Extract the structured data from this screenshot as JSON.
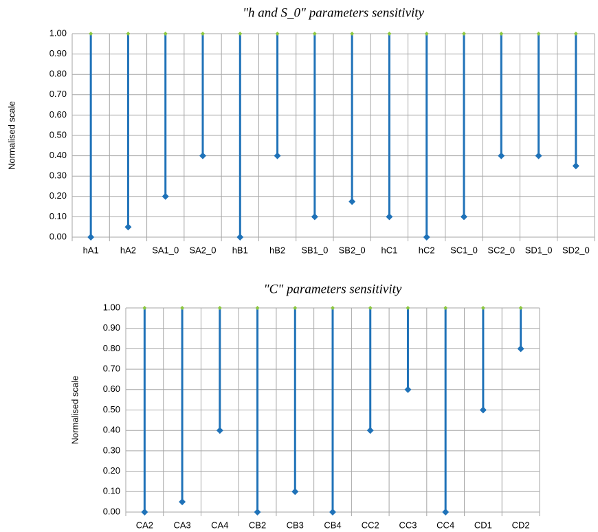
{
  "chart_data": [
    {
      "type": "range",
      "title": "\"h and S_0\" parameters sensitivity",
      "y_label": "Normalised scale",
      "categories": [
        "hA1",
        "hA2",
        "SA1_0",
        "SA2_0",
        "hB1",
        "hB2",
        "SB1_0",
        "SB2_0",
        "hC1",
        "hC2",
        "SC1_0",
        "SC2_0",
        "SD1_0",
        "SD2_0"
      ],
      "low": [
        0,
        0.05,
        0.2,
        0.4,
        0,
        0.4,
        0.1,
        0.175,
        0.1,
        0,
        0.1,
        0.4,
        0.4,
        0.35
      ],
      "high": [
        1,
        1,
        1,
        1,
        1,
        1,
        1,
        1,
        1,
        1,
        1,
        1,
        1,
        1
      ],
      "color": "#1f72b8",
      "ylim": [
        0,
        1
      ],
      "yticks": [
        {
          "value": 0,
          "label": "0.00"
        },
        {
          "value": 0.1,
          "label": "0.10"
        },
        {
          "value": 0.2,
          "label": "0.20"
        },
        {
          "value": 0.3,
          "label": "0.30"
        },
        {
          "value": 0.4,
          "label": "0.40"
        },
        {
          "value": 0.5,
          "label": "0.50"
        },
        {
          "value": 0.6,
          "label": "0.60"
        },
        {
          "value": 0.7,
          "label": "0.70"
        },
        {
          "value": 0.8,
          "label": "0.80"
        },
        {
          "value": 0.9,
          "label": "0.90"
        },
        {
          "value": 1,
          "label": "1.00"
        }
      ],
      "grid": true
    },
    {
      "type": "range",
      "title": "\"C\" parameters sensitivity",
      "y_label": "Normalised scale",
      "categories": [
        "CA2",
        "CA3",
        "CA4",
        "CB2",
        "CB3",
        "CB4",
        "CC2",
        "CC3",
        "CC4",
        "CD1",
        "CD2"
      ],
      "low": [
        0,
        0.05,
        0.4,
        0,
        0.1,
        0,
        0.4,
        0.6,
        0,
        0.5,
        0.8
      ],
      "high": [
        1,
        1,
        1,
        1,
        1,
        1,
        1,
        1,
        1,
        1,
        1
      ],
      "color": "#1f72b8",
      "ylim": [
        0,
        1
      ],
      "yticks": [
        {
          "value": 0,
          "label": "0.00"
        },
        {
          "value": 0.1,
          "label": "0.10"
        },
        {
          "value": 0.2,
          "label": "0.20"
        },
        {
          "value": 0.3,
          "label": "0.30"
        },
        {
          "value": 0.4,
          "label": "0.40"
        },
        {
          "value": 0.5,
          "label": "0.50"
        },
        {
          "value": 0.6,
          "label": "0.60"
        },
        {
          "value": 0.7,
          "label": "0.70"
        },
        {
          "value": 0.8,
          "label": "0.80"
        },
        {
          "value": 0.9,
          "label": "0.90"
        },
        {
          "value": 1,
          "label": "1.00"
        }
      ],
      "grid": true
    }
  ]
}
